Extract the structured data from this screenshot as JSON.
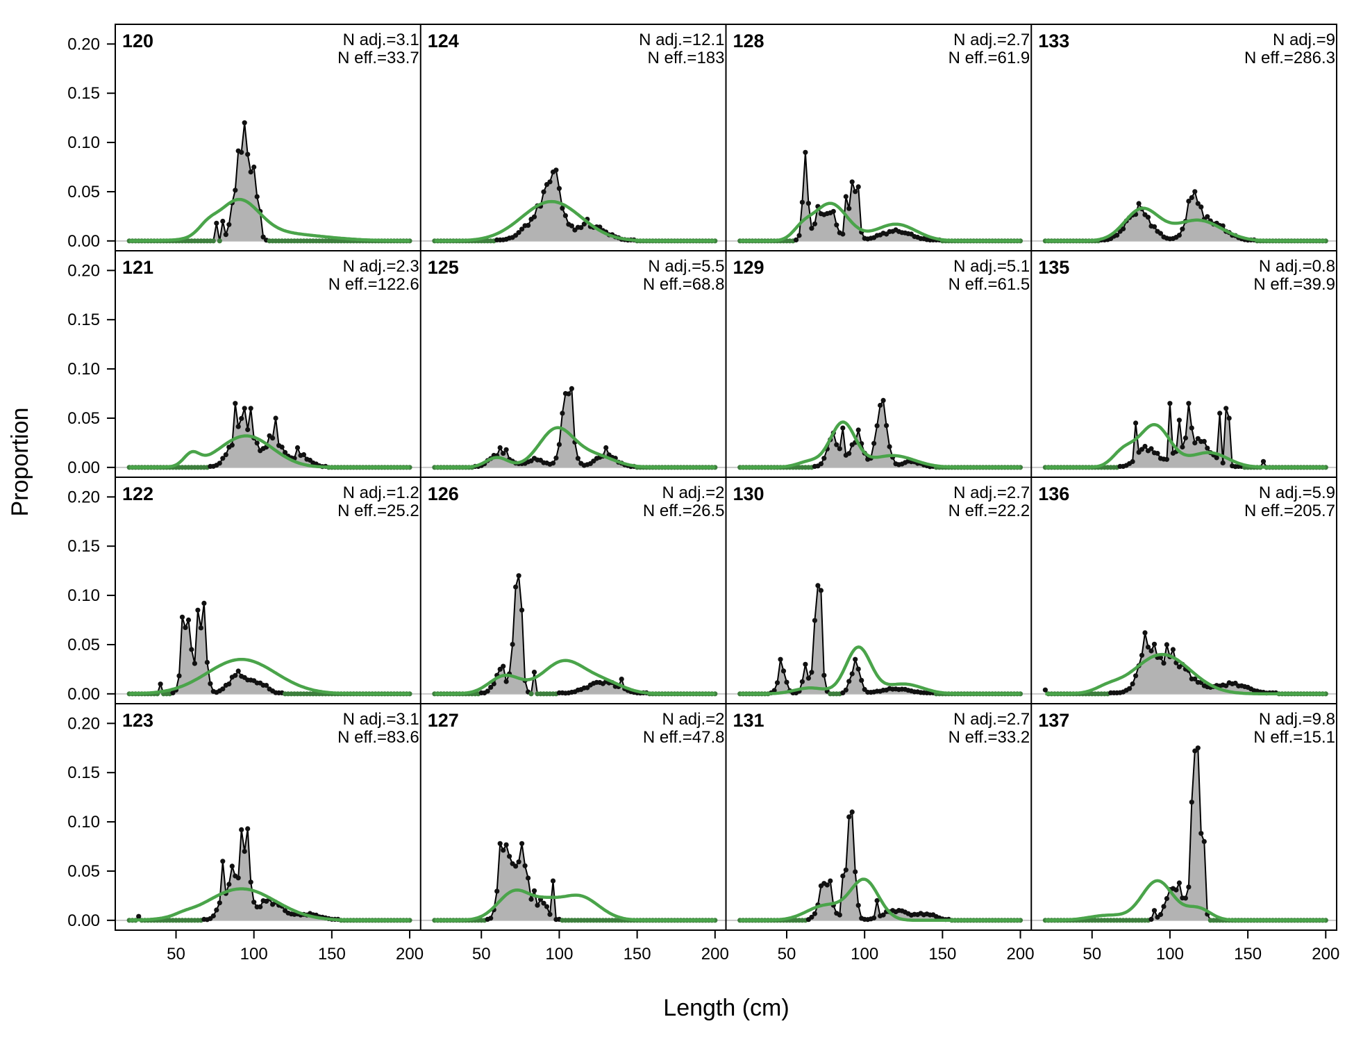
{
  "chart_data": {
    "type": "area",
    "ylabel": "Proportion",
    "xlabel": "Length (cm)",
    "xlim": [
      11,
      207
    ],
    "ylim": [
      -0.01,
      0.22
    ],
    "x_ticks": [
      50,
      100,
      150,
      200
    ],
    "y_ticks": [
      "0.00",
      "0.05",
      "0.10",
      "0.15",
      "0.20"
    ],
    "layout": "4x4 panels, column-major order",
    "colors": {
      "observed_fill": "#b3b3b3",
      "observed_line": "#000000",
      "expected_line": "#4aa44a",
      "zero_line": "#c8c8c8"
    },
    "series_names": [
      "observed",
      "expected"
    ],
    "panels": [
      {
        "title": "120",
        "n_adj": "N adj.=3.1",
        "n_eff": "N eff.=33.7",
        "obs_peaks": [
          [
            93,
            0.085,
            3
          ],
          [
            99,
            0.07,
            3
          ],
          [
            88,
            0.04,
            3
          ]
        ],
        "obs_spikes": [
          [
            94,
            0.12
          ],
          [
            91,
            0.09
          ],
          [
            97,
            0.07
          ],
          [
            100,
            0.075
          ],
          [
            104,
            0.03
          ],
          [
            80,
            0.02
          ],
          [
            75,
            0.018
          ]
        ],
        "exp": [
          [
            90,
            0.036,
            13
          ],
          [
            70,
            0.008,
            6
          ],
          [
            112,
            0.008,
            30
          ]
        ]
      },
      {
        "title": "121",
        "n_adj": "N adj.=2.3",
        "n_eff": "N eff.=122.6",
        "obs_peaks": [
          [
            93,
            0.045,
            7
          ],
          [
            113,
            0.03,
            5
          ],
          [
            130,
            0.012,
            6
          ]
        ],
        "obs_spikes": [
          [
            88,
            0.065
          ],
          [
            94,
            0.06
          ],
          [
            97,
            0.06
          ],
          [
            113,
            0.05
          ],
          [
            128,
            0.02
          ]
        ],
        "exp": [
          [
            95,
            0.032,
            17
          ],
          [
            60,
            0.012,
            5
          ]
        ]
      },
      {
        "title": "122",
        "n_adj": "N adj.=1.2",
        "n_eff": "N eff.=25.2",
        "obs_peaks": [
          [
            56,
            0.065,
            2.5
          ],
          [
            66,
            0.075,
            3
          ],
          [
            90,
            0.02,
            6
          ],
          [
            104,
            0.01,
            5
          ]
        ],
        "obs_spikes": [
          [
            54,
            0.078
          ],
          [
            57,
            0.075
          ],
          [
            64,
            0.085
          ],
          [
            67,
            0.092
          ],
          [
            39,
            0.01
          ],
          [
            60,
            0.045
          ]
        ],
        "exp": [
          [
            92,
            0.035,
            22
          ]
        ]
      },
      {
        "title": "123",
        "n_adj": "N adj.=3.1",
        "n_eff": "N eff.=83.6",
        "obs_peaks": [
          [
            94,
            0.07,
            3
          ],
          [
            84,
            0.035,
            5
          ],
          [
            110,
            0.02,
            8
          ],
          [
            135,
            0.006,
            8
          ]
        ],
        "obs_spikes": [
          [
            92,
            0.092
          ],
          [
            95,
            0.093
          ],
          [
            79,
            0.06
          ],
          [
            86,
            0.055
          ],
          [
            88,
            0.045
          ],
          [
            25,
            0.004
          ]
        ],
        "exp": [
          [
            92,
            0.032,
            22
          ],
          [
            55,
            0.002,
            6
          ]
        ]
      },
      {
        "title": "124",
        "n_adj": "N adj.=12.1",
        "n_eff": "N eff.=183",
        "obs_peaks": [
          [
            96,
            0.06,
            4
          ],
          [
            90,
            0.03,
            10
          ],
          [
            120,
            0.015,
            10
          ]
        ],
        "obs_spikes": [
          [
            95,
            0.07
          ],
          [
            97,
            0.072
          ],
          [
            93,
            0.06
          ],
          [
            118,
            0.022
          ]
        ],
        "exp": [
          [
            95,
            0.04,
            19
          ]
        ]
      },
      {
        "title": "125",
        "n_adj": "N adj.=5.5",
        "n_eff": "N eff.=68.8",
        "obs_peaks": [
          [
            105,
            0.07,
            3.5
          ],
          [
            62,
            0.015,
            6
          ],
          [
            130,
            0.012,
            7
          ],
          [
            85,
            0.008,
            6
          ]
        ],
        "obs_spikes": [
          [
            104,
            0.075
          ],
          [
            107,
            0.08
          ],
          [
            101,
            0.055
          ],
          [
            61,
            0.02
          ],
          [
            65,
            0.018
          ],
          [
            130,
            0.02
          ]
        ],
        "exp": [
          [
            98,
            0.038,
            11
          ],
          [
            60,
            0.01,
            7
          ],
          [
            122,
            0.012,
            13
          ]
        ]
      },
      {
        "title": "126",
        "n_adj": "N adj.=2",
        "n_eff": "N eff.=26.5",
        "obs_peaks": [
          [
            73,
            0.105,
            2.5
          ],
          [
            62,
            0.02,
            4
          ],
          [
            128,
            0.012,
            10
          ]
        ],
        "obs_spikes": [
          [
            73,
            0.12
          ],
          [
            76,
            0.085
          ],
          [
            62,
            0.025
          ],
          [
            64,
            0.028
          ],
          [
            83,
            0.022
          ],
          [
            140,
            0.015
          ]
        ],
        "exp": [
          [
            103,
            0.033,
            14
          ],
          [
            65,
            0.018,
            10
          ],
          [
            130,
            0.01,
            12
          ]
        ]
      },
      {
        "title": "127",
        "n_adj": "N adj.=2",
        "n_eff": "N eff.=47.8",
        "obs_peaks": [
          [
            64,
            0.06,
            3
          ],
          [
            77,
            0.05,
            3
          ],
          [
            70,
            0.04,
            5
          ],
          [
            88,
            0.02,
            4
          ]
        ],
        "obs_spikes": [
          [
            61,
            0.078
          ],
          [
            67,
            0.065
          ],
          [
            71,
            0.055
          ],
          [
            76,
            0.078
          ],
          [
            83,
            0.03
          ],
          [
            96,
            0.04
          ]
        ],
        "exp": [
          [
            72,
            0.03,
            11
          ],
          [
            112,
            0.025,
            13
          ],
          [
            92,
            0.01,
            8
          ]
        ]
      },
      {
        "title": "128",
        "n_adj": "N adj.=2.7",
        "n_eff": "N eff.=61.9",
        "obs_peaks": [
          [
            62,
            0.06,
            1.8
          ],
          [
            93,
            0.055,
            2.5
          ],
          [
            75,
            0.03,
            6
          ],
          [
            120,
            0.01,
            10
          ]
        ],
        "obs_spikes": [
          [
            61,
            0.09
          ],
          [
            87,
            0.045
          ],
          [
            92,
            0.06
          ],
          [
            95,
            0.055
          ],
          [
            70,
            0.035
          ],
          [
            80,
            0.03
          ]
        ],
        "exp": [
          [
            78,
            0.038,
            11
          ],
          [
            120,
            0.017,
            13
          ],
          [
            60,
            0.01,
            6
          ]
        ]
      },
      {
        "title": "129",
        "n_adj": "N adj.=5.1",
        "n_eff": "N eff.=61.5",
        "obs_peaks": [
          [
            111,
            0.06,
            3.5
          ],
          [
            80,
            0.03,
            4
          ],
          [
            95,
            0.03,
            4
          ],
          [
            130,
            0.006,
            6
          ]
        ],
        "obs_spikes": [
          [
            109,
            0.063
          ],
          [
            112,
            0.068
          ],
          [
            80,
            0.035
          ],
          [
            86,
            0.04
          ],
          [
            96,
            0.038
          ]
        ],
        "exp": [
          [
            86,
            0.045,
            8
          ],
          [
            118,
            0.012,
            14
          ],
          [
            65,
            0.006,
            8
          ]
        ]
      },
      {
        "title": "130",
        "n_adj": "N adj.=2.7",
        "n_eff": "N eff.=22.2",
        "obs_peaks": [
          [
            70,
            0.1,
            2.2
          ],
          [
            94,
            0.03,
            3
          ],
          [
            47,
            0.025,
            2.5
          ],
          [
            62,
            0.02,
            2
          ],
          [
            120,
            0.005,
            10
          ]
        ],
        "obs_spikes": [
          [
            69,
            0.11
          ],
          [
            72,
            0.105
          ],
          [
            45,
            0.035
          ],
          [
            61,
            0.03
          ],
          [
            93,
            0.035
          ]
        ],
        "exp": [
          [
            96,
            0.047,
            8
          ],
          [
            65,
            0.006,
            10
          ],
          [
            125,
            0.01,
            12
          ]
        ]
      },
      {
        "title": "131",
        "n_adj": "N adj.=2.7",
        "n_eff": "N eff.=33.2",
        "obs_peaks": [
          [
            91,
            0.1,
            2.5
          ],
          [
            75,
            0.035,
            4
          ],
          [
            120,
            0.01,
            8
          ],
          [
            140,
            0.006,
            6
          ]
        ],
        "obs_spikes": [
          [
            89,
            0.105
          ],
          [
            92,
            0.11
          ],
          [
            72,
            0.035
          ],
          [
            78,
            0.04
          ],
          [
            85,
            0.045
          ],
          [
            107,
            0.02
          ]
        ],
        "exp": [
          [
            100,
            0.04,
            9
          ],
          [
            75,
            0.015,
            12
          ]
        ]
      },
      {
        "title": "133",
        "n_adj": "N adj.=9",
        "n_eff": "N eff.=286.3",
        "obs_peaks": [
          [
            80,
            0.03,
            8
          ],
          [
            115,
            0.035,
            4
          ],
          [
            125,
            0.02,
            10
          ]
        ],
        "obs_spikes": [
          [
            79,
            0.038
          ],
          [
            113,
            0.044
          ],
          [
            117,
            0.038
          ],
          [
            122,
            0.022
          ]
        ],
        "exp": [
          [
            82,
            0.032,
            11
          ],
          [
            118,
            0.021,
            15
          ]
        ]
      },
      {
        "title": "135",
        "n_adj": "N adj.=0.8",
        "n_eff": "N eff.=39.9",
        "obs_peaks": [
          [
            85,
            0.02,
            6
          ],
          [
            115,
            0.03,
            10
          ]
        ],
        "obs_spikes": [
          [
            77,
            0.045
          ],
          [
            100,
            0.065
          ],
          [
            105,
            0.048
          ],
          [
            111,
            0.065
          ],
          [
            113,
            0.04
          ],
          [
            131,
            0.055
          ],
          [
            135,
            0.06
          ],
          [
            138,
            0.05
          ],
          [
            160,
            0.006
          ]
        ],
        "exp": [
          [
            90,
            0.043,
            10
          ],
          [
            70,
            0.015,
            7
          ],
          [
            125,
            0.015,
            12
          ]
        ]
      },
      {
        "title": "136",
        "n_adj": "N adj.=5.9",
        "n_eff": "N eff.=205.7",
        "obs_peaks": [
          [
            100,
            0.035,
            12
          ],
          [
            85,
            0.03,
            5
          ],
          [
            140,
            0.01,
            10
          ]
        ],
        "obs_spikes": [
          [
            84,
            0.062
          ],
          [
            98,
            0.05
          ],
          [
            102,
            0.045
          ],
          [
            108,
            0.03
          ],
          [
            20,
            0.004
          ]
        ],
        "exp": [
          [
            95,
            0.04,
            18
          ],
          [
            60,
            0.005,
            8
          ]
        ]
      },
      {
        "title": "137",
        "n_adj": "N adj.=9.8",
        "n_eff": "N eff.=15.1",
        "obs_peaks": [
          [
            117,
            0.16,
            2.8
          ],
          [
            103,
            0.035,
            5
          ]
        ],
        "obs_spikes": [
          [
            116,
            0.172
          ],
          [
            113,
            0.12
          ],
          [
            121,
            0.08
          ],
          [
            105,
            0.038
          ],
          [
            90,
            0.01
          ]
        ],
        "exp": [
          [
            92,
            0.04,
            10
          ],
          [
            118,
            0.012,
            8
          ],
          [
            60,
            0.005,
            12
          ]
        ]
      }
    ]
  }
}
